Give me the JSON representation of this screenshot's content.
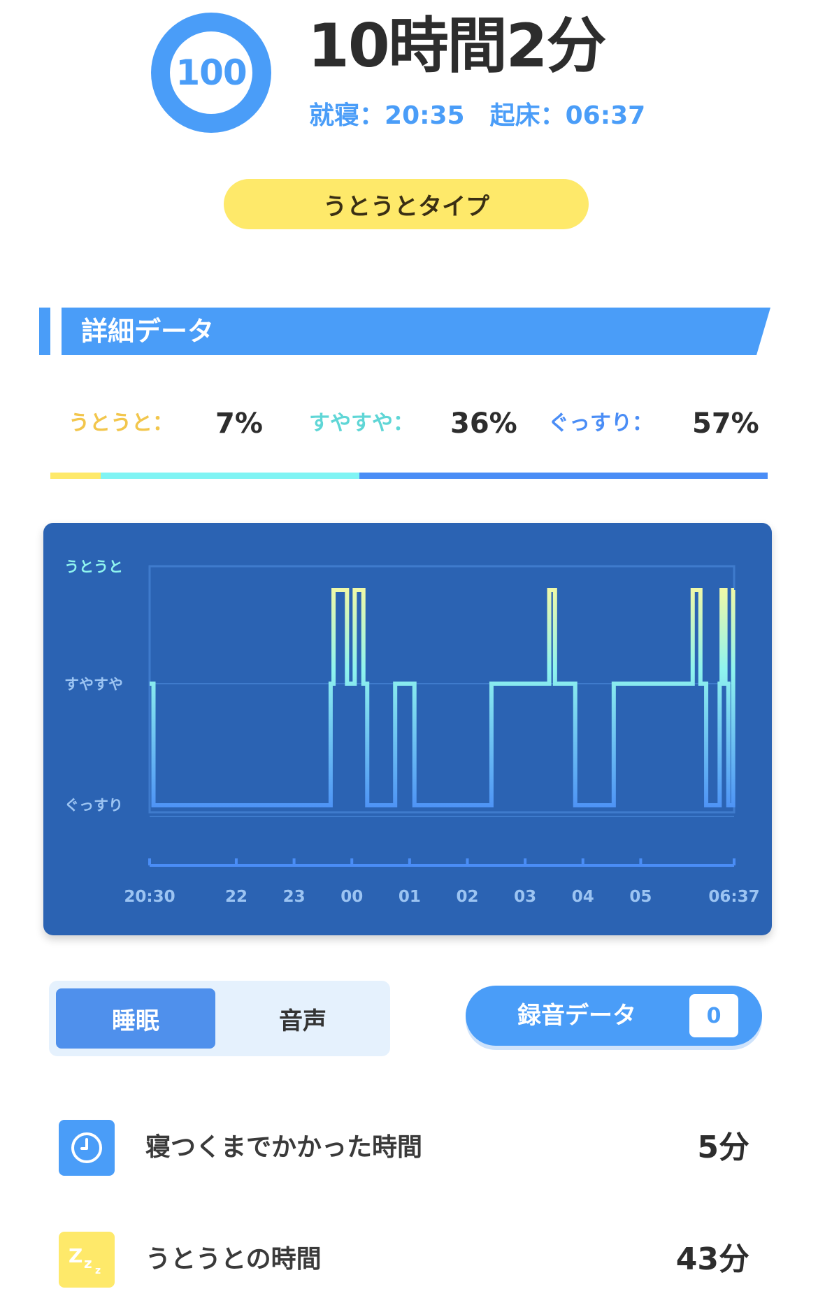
{
  "header": {
    "score": "100",
    "duration": "10時間2分",
    "bedtime_label": "就寝：",
    "bedtime": "20:35",
    "wake_label": "起床：",
    "wake": "06:37",
    "sleep_type": "うとうとタイプ"
  },
  "section": {
    "title": "詳細データ"
  },
  "breakdown": [
    {
      "label": "うとうと：",
      "value": "7%",
      "color": "#f7d35a",
      "fraction": 0.07
    },
    {
      "label": "すやすや：",
      "value": "36%",
      "color": "#5fd6d6",
      "fraction": 0.36
    },
    {
      "label": "ぐっすり：",
      "value": "57%",
      "color": "#4a8df6",
      "fraction": 0.57
    }
  ],
  "chart_data": {
    "type": "line",
    "step": true,
    "levels": [
      "うとうと",
      "すやすや",
      "ぐっすり"
    ],
    "x_ticks": [
      "20:30",
      "22",
      "23",
      "00",
      "01",
      "02",
      "03",
      "04",
      "05",
      "06:37"
    ],
    "x_range": [
      "20:30",
      "06:37"
    ],
    "series": [
      {
        "points": [
          [
            "20:30",
            "すやすや"
          ],
          [
            "20:34",
            "ぐっすり"
          ],
          [
            "23:38",
            "すやすや"
          ],
          [
            "23:41",
            "うとうと"
          ],
          [
            "23:55",
            "すやすや"
          ],
          [
            "00:03",
            "うとうと"
          ],
          [
            "00:12",
            "すやすや"
          ],
          [
            "00:16",
            "ぐっすり"
          ],
          [
            "00:45",
            "すやすや"
          ],
          [
            "01:05",
            "ぐっすり"
          ],
          [
            "02:25",
            "すやすや"
          ],
          [
            "03:25",
            "うとうと"
          ],
          [
            "03:31",
            "すやすや"
          ],
          [
            "03:52",
            "ぐっすり"
          ],
          [
            "04:32",
            "すやすや"
          ],
          [
            "05:54",
            "うとうと"
          ],
          [
            "06:02",
            "すやすや"
          ],
          [
            "06:08",
            "ぐっすり"
          ],
          [
            "06:22",
            "すやすや"
          ],
          [
            "06:24",
            "うとうと"
          ],
          [
            "06:28",
            "すやすや"
          ],
          [
            "06:31",
            "ぐっすり"
          ],
          [
            "06:36",
            "うとうと"
          ],
          [
            "06:37",
            "うとうと"
          ]
        ]
      }
    ],
    "grid": true,
    "colors": {
      "background": "#2b63b3",
      "deep": "#4a8df6",
      "light": "#8ff4ee",
      "doze": "#eef8a8"
    }
  },
  "tabs": {
    "sleep": "睡眠",
    "sound": "音声"
  },
  "recording": {
    "label": "録音データ",
    "count": "0"
  },
  "stats": [
    {
      "icon": "clock-icon",
      "label": "寝つくまでかかった時間",
      "value": "5分",
      "color": "#4a9df8"
    },
    {
      "icon": "zzz-icon",
      "label": "うとうとの時間",
      "value": "43分",
      "color": "#fee96a"
    }
  ]
}
